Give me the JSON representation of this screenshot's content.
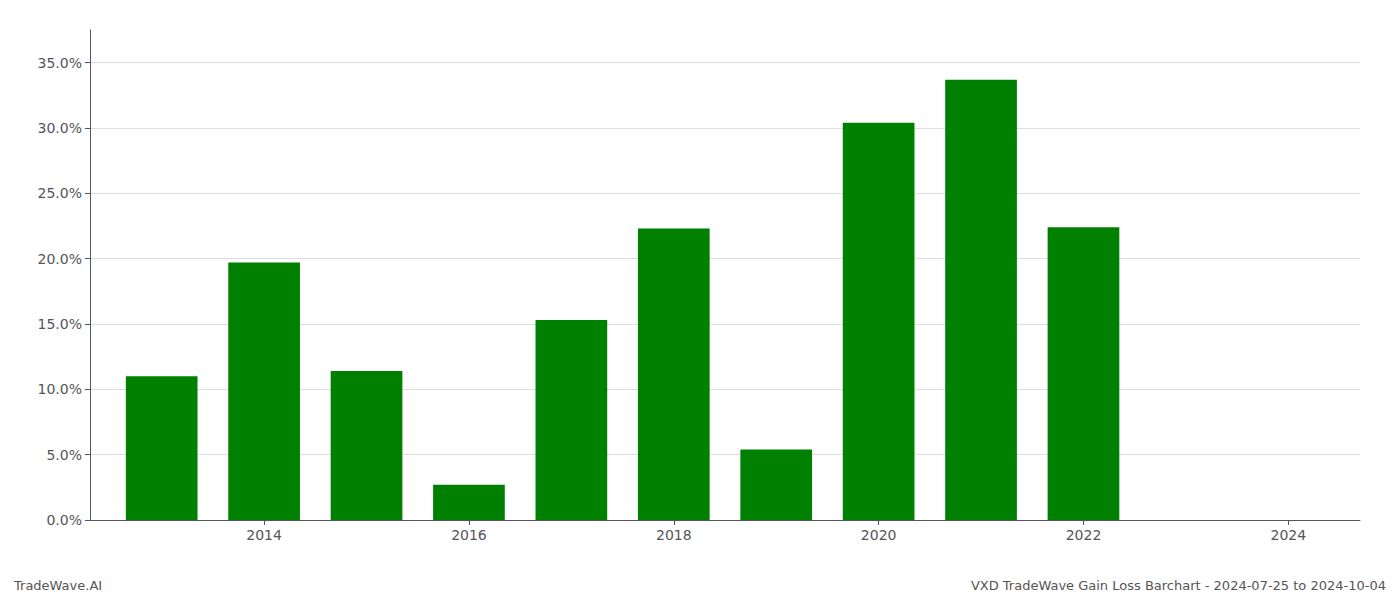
{
  "chart_data": {
    "type": "bar",
    "x": [
      2013,
      2014,
      2015,
      2016,
      2017,
      2018,
      2019,
      2020,
      2021,
      2022,
      2023
    ],
    "values": [
      0.11,
      0.197,
      0.114,
      0.027,
      0.153,
      0.223,
      0.054,
      0.304,
      0.337,
      0.224,
      0.0
    ],
    "color": "#008000",
    "xlim": [
      2012.3,
      2024.7
    ],
    "xticks": [
      2014,
      2016,
      2018,
      2020,
      2022,
      2024
    ],
    "ylim": [
      0.0,
      0.375
    ],
    "yticks": [
      {
        "value": 0.0,
        "label": "0.0%"
      },
      {
        "value": 0.05,
        "label": "5.0%"
      },
      {
        "value": 0.1,
        "label": "10.0%"
      },
      {
        "value": 0.15,
        "label": "15.0%"
      },
      {
        "value": 0.2,
        "label": "20.0%"
      },
      {
        "value": 0.25,
        "label": "25.0%"
      },
      {
        "value": 0.3,
        "label": "30.0%"
      },
      {
        "value": 0.35,
        "label": "35.0%"
      }
    ],
    "grid": true,
    "annotations": [
      "TradeWave.AI",
      "VXD TradeWave Gain Loss Barchart - 2024-07-25 to 2024-10-04"
    ]
  }
}
